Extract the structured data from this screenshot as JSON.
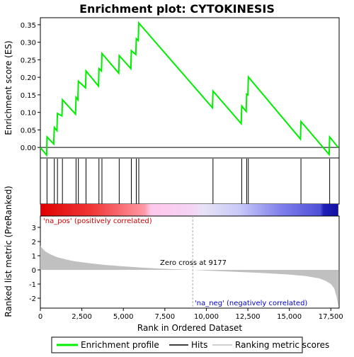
{
  "chart_data": {
    "type": "line",
    "title": "Enrichment plot: CYTOKINESIS",
    "top_panel": {
      "ylabel": "Enrichment score (ES)",
      "ylim": [
        -0.03,
        0.37
      ],
      "yticks": [
        "0.00",
        "0.05",
        "0.10",
        "0.15",
        "0.20",
        "0.25",
        "0.30",
        "0.35"
      ],
      "ytick_values": [
        0.0,
        0.05,
        0.1,
        0.15,
        0.2,
        0.25,
        0.3,
        0.35
      ],
      "line_color": "#00ee00",
      "es_points": {
        "x": [
          0,
          380,
          400,
          800,
          840,
          1000,
          1030,
          1300,
          1330,
          2120,
          2150,
          2260,
          2290,
          2720,
          2750,
          3500,
          3530,
          3680,
          3710,
          4720,
          4750,
          5450,
          5480,
          5750,
          5780,
          5900,
          5930,
          10370,
          10400,
          12100,
          12130,
          12400,
          12430,
          12500,
          12530,
          15670,
          15700,
          17400,
          17430,
          17950
        ],
        "y": [
          0.0,
          -0.022,
          0.03,
          0.01,
          0.057,
          0.048,
          0.097,
          0.09,
          0.136,
          0.095,
          0.143,
          0.136,
          0.189,
          0.17,
          0.218,
          0.175,
          0.225,
          0.218,
          0.268,
          0.212,
          0.262,
          0.225,
          0.276,
          0.265,
          0.31,
          0.305,
          0.355,
          0.113,
          0.161,
          0.068,
          0.118,
          0.103,
          0.152,
          0.15,
          0.201,
          0.024,
          0.074,
          -0.02,
          0.03,
          0.0
        ]
      }
    },
    "hits_panel": {
      "hit_positions": [
        400,
        840,
        1030,
        1330,
        2150,
        2290,
        2750,
        3530,
        3710,
        4750,
        5480,
        5780,
        5930,
        10400,
        12130,
        12430,
        12530,
        15700,
        17430
      ]
    },
    "bottom_panel": {
      "ylabel": "Ranked list metric (PreRanked)",
      "xlabel": "Rank in Ordered Dataset",
      "ylim": [
        -2.7,
        3.8
      ],
      "yticks": [
        "-2",
        "-1",
        "0",
        "1",
        "2",
        "3"
      ],
      "ytick_values": [
        -2,
        -1,
        0,
        1,
        2,
        3
      ],
      "xticks": [
        "0",
        "2,500",
        "5,000",
        "7,500",
        "10,000",
        "12,500",
        "15,000",
        "17,500"
      ],
      "xtick_values": [
        0,
        2500,
        5000,
        7500,
        10000,
        12500,
        15000,
        17500
      ],
      "xlim": [
        0,
        18000
      ],
      "n_genes": 17950,
      "zero_cross": 9177,
      "zero_cross_label": "Zero cross at 9177",
      "na_pos_label": "'na_pos' (positively correlated)",
      "na_neg_label": "'na_neg' (negatively correlated)",
      "metric_curve": {
        "x": [
          0,
          100,
          300,
          600,
          1000,
          1500,
          2000,
          3000,
          4000,
          5000,
          6000,
          7000,
          8000,
          9177,
          10000,
          11000,
          12000,
          13000,
          14000,
          15000,
          16000,
          16800,
          17200,
          17500,
          17700,
          17850,
          17950
        ],
        "y": [
          1.7,
          1.55,
          1.3,
          1.1,
          0.9,
          0.75,
          0.62,
          0.46,
          0.34,
          0.25,
          0.17,
          0.1,
          0.05,
          0.0,
          -0.05,
          -0.1,
          -0.15,
          -0.2,
          -0.26,
          -0.33,
          -0.44,
          -0.6,
          -0.78,
          -1.0,
          -1.3,
          -1.9,
          -2.6
        ]
      },
      "metric_fill_color": "#c0c0c0"
    },
    "legend": [
      {
        "label": "Enrichment profile",
        "color": "#00ee00"
      },
      {
        "label": "Hits",
        "color": "#000000"
      },
      {
        "label": "Ranking metric scores",
        "color": "#c0c0c0"
      }
    ]
  }
}
